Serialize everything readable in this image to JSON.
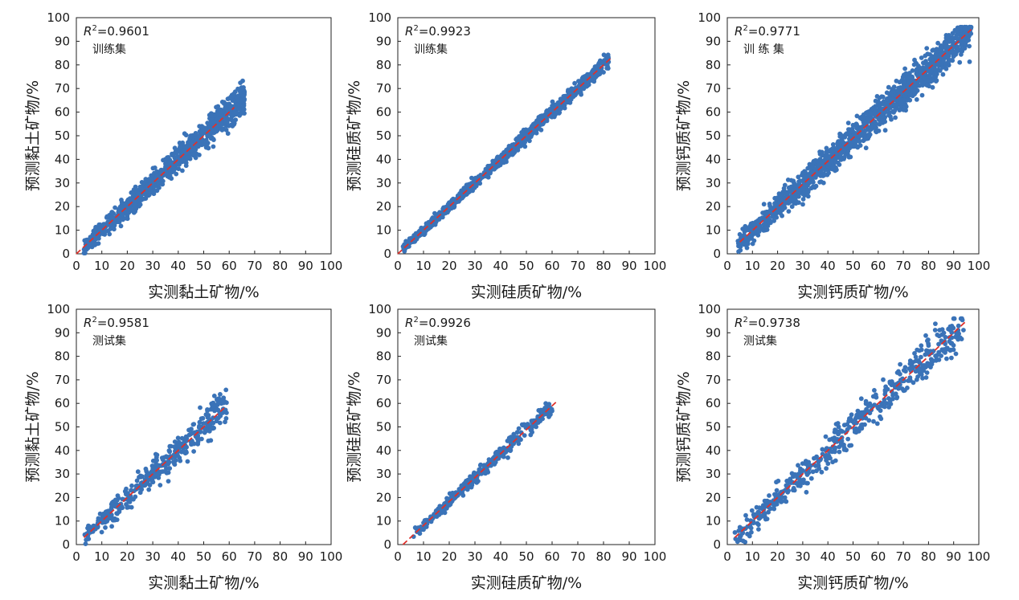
{
  "chart_data": [
    {
      "type": "scatter",
      "id": "clay-train",
      "r2_label": "R",
      "r2_value": "=0.9601",
      "set_label": "训练集",
      "xlabel": "实测黏土矿物/%",
      "ylabel": "预测黏土矿物/%",
      "xlim": [
        0,
        100
      ],
      "ylim": [
        0,
        100
      ],
      "xticks": [
        "0",
        "10",
        "20",
        "30",
        "40",
        "50",
        "60",
        "70",
        "80",
        "90",
        "100"
      ],
      "yticks": [
        "0",
        "10",
        "20",
        "30",
        "40",
        "50",
        "60",
        "70",
        "80",
        "90",
        "100"
      ],
      "fit_line": [
        [
          0,
          0
        ],
        [
          62,
          62
        ]
      ],
      "n_points": 900,
      "x_range": [
        3,
        66
      ],
      "scatter_sd": 4.5,
      "seed": 11
    },
    {
      "type": "scatter",
      "id": "silica-train",
      "r2_label": "R",
      "r2_value": "=0.9923",
      "set_label": "训练集",
      "xlabel": "实测硅质矿物/%",
      "ylabel": "预测硅质矿物/%",
      "xlim": [
        0,
        100
      ],
      "ylim": [
        0,
        100
      ],
      "xticks": [
        "0",
        "10",
        "20",
        "30",
        "40",
        "50",
        "60",
        "70",
        "80",
        "90",
        "100"
      ],
      "yticks": [
        "0",
        "10",
        "20",
        "30",
        "40",
        "50",
        "60",
        "70",
        "80",
        "90",
        "100"
      ],
      "fit_line": [
        [
          0,
          0
        ],
        [
          83,
          83
        ]
      ],
      "n_points": 900,
      "x_range": [
        2,
        82
      ],
      "scatter_sd": 2.2,
      "seed": 23
    },
    {
      "type": "scatter",
      "id": "calc-train",
      "r2_label": "R",
      "r2_value": "=0.9771",
      "set_label": "训 练 集",
      "xlabel": "实测钙质矿物/%",
      "ylabel": "预测钙质矿物/%",
      "xlim": [
        0,
        100
      ],
      "ylim": [
        0,
        100
      ],
      "xticks": [
        "0",
        "10",
        "20",
        "30",
        "40",
        "50",
        "60",
        "70",
        "80",
        "90",
        "100"
      ],
      "yticks": [
        "0",
        "10",
        "20",
        "30",
        "40",
        "50",
        "60",
        "70",
        "80",
        "90",
        "100"
      ],
      "fit_line": [
        [
          5,
          5
        ],
        [
          97,
          95
        ]
      ],
      "n_points": 1400,
      "x_range": [
        4,
        97
      ],
      "scatter_sd": 5.5,
      "seed": 37
    },
    {
      "type": "scatter",
      "id": "clay-test",
      "r2_label": "R",
      "r2_value": "=0.9581",
      "set_label": "测试集",
      "xlabel": "实测黏土矿物/%",
      "ylabel": "预测黏土矿物/%",
      "xlim": [
        0,
        100
      ],
      "ylim": [
        0,
        100
      ],
      "xticks": [
        "0",
        "10",
        "20",
        "30",
        "40",
        "50",
        "60",
        "70",
        "80",
        "90",
        "100"
      ],
      "yticks": [
        "0",
        "10",
        "20",
        "30",
        "40",
        "50",
        "60",
        "70",
        "80",
        "90",
        "100"
      ],
      "fit_line": [
        [
          3,
          3
        ],
        [
          58,
          58
        ]
      ],
      "n_points": 380,
      "x_range": [
        3,
        59
      ],
      "scatter_sd": 5,
      "seed": 41
    },
    {
      "type": "scatter",
      "id": "silica-test",
      "r2_label": "R",
      "r2_value": "=0.9926",
      "set_label": "测试集",
      "xlabel": "实测硅质矿物/%",
      "ylabel": "预测硅质矿物/%",
      "xlim": [
        0,
        100
      ],
      "ylim": [
        0,
        100
      ],
      "xticks": [
        "0",
        "10",
        "20",
        "30",
        "40",
        "50",
        "60",
        "70",
        "80",
        "90",
        "100"
      ],
      "yticks": [
        "0",
        "10",
        "20",
        "30",
        "40",
        "50",
        "60",
        "70",
        "80",
        "90",
        "100"
      ],
      "fit_line": [
        [
          2,
          0
        ],
        [
          62,
          61
        ]
      ],
      "n_points": 380,
      "x_range": [
        5,
        60
      ],
      "scatter_sd": 2.4,
      "seed": 53
    },
    {
      "type": "scatter",
      "id": "calc-test",
      "r2_label": "R",
      "r2_value": "=0.9738",
      "set_label": "测试集",
      "xlabel": "实测钙质矿物/%",
      "ylabel": "预测钙质矿物/%",
      "xlim": [
        0,
        100
      ],
      "ylim": [
        0,
        100
      ],
      "xticks": [
        "0",
        "10",
        "20",
        "30",
        "40",
        "50",
        "60",
        "70",
        "80",
        "90",
        "100"
      ],
      "yticks": [
        "0",
        "10",
        "20",
        "30",
        "40",
        "50",
        "60",
        "70",
        "80",
        "90",
        "100"
      ],
      "fit_line": [
        [
          3,
          3
        ],
        [
          95,
          95
        ]
      ],
      "n_points": 480,
      "x_range": [
        3,
        94
      ],
      "scatter_sd": 6,
      "seed": 67
    }
  ]
}
